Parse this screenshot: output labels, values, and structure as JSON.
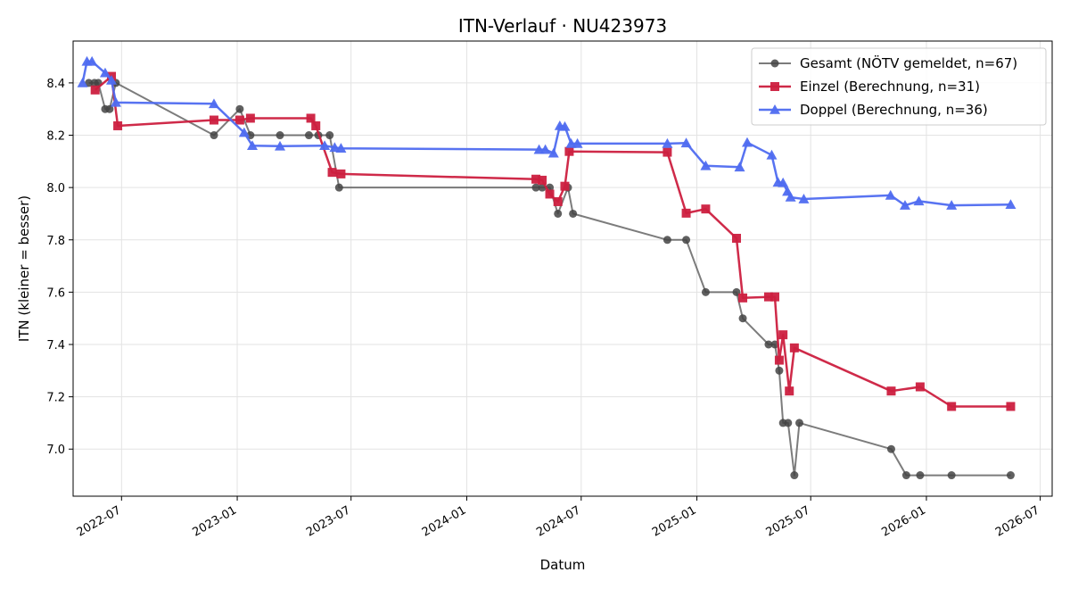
{
  "chart_data": {
    "type": "line",
    "title": "ITN-Verlauf · NU423973",
    "xlabel": "Datum",
    "ylabel": "ITN  (kleiner = besser)",
    "x_type": "date",
    "xlim": [
      "2022-04-15",
      "2026-07-20"
    ],
    "ylim": [
      6.82,
      8.56
    ],
    "x_ticks": [
      "2022-07-01",
      "2023-01-01",
      "2023-07-01",
      "2024-01-01",
      "2024-07-01",
      "2025-01-01",
      "2025-07-01",
      "2026-01-01",
      "2026-07-01"
    ],
    "x_tick_labels": [
      "2022-07",
      "2023-01",
      "2023-07",
      "2024-01",
      "2024-07",
      "2025-01",
      "2025-07",
      "2026-01",
      "2026-07"
    ],
    "y_ticks": [
      7.0,
      7.2,
      7.4,
      7.6,
      7.8,
      8.0,
      8.2,
      8.4
    ],
    "y_tick_labels": [
      "7.0",
      "7.2",
      "7.4",
      "7.6",
      "7.8",
      "8.0",
      "8.2",
      "8.4"
    ],
    "grid": true,
    "legend_position": "top-right",
    "series": [
      {
        "name": "Gesamt (NÖTV gemeldet, n=67)",
        "color": "#444444",
        "marker": "circle",
        "points": [
          [
            "2022-05-10",
            8.4
          ],
          [
            "2022-05-19",
            8.4
          ],
          [
            "2022-05-25",
            8.4
          ],
          [
            "2022-06-05",
            8.3
          ],
          [
            "2022-06-12",
            8.3
          ],
          [
            "2022-06-22",
            8.4
          ],
          [
            "2022-11-25",
            8.2
          ],
          [
            "2023-01-05",
            8.3
          ],
          [
            "2023-01-22",
            8.2
          ],
          [
            "2023-03-10",
            8.2
          ],
          [
            "2023-04-25",
            8.2
          ],
          [
            "2023-05-10",
            8.2
          ],
          [
            "2023-05-28",
            8.2
          ],
          [
            "2023-06-12",
            8.0
          ],
          [
            "2024-04-20",
            8.0
          ],
          [
            "2024-04-30",
            8.0
          ],
          [
            "2024-05-12",
            8.0
          ],
          [
            "2024-05-25",
            7.9
          ],
          [
            "2024-06-10",
            8.0
          ],
          [
            "2024-06-18",
            7.9
          ],
          [
            "2024-11-15",
            7.8
          ],
          [
            "2024-12-15",
            7.8
          ],
          [
            "2025-01-15",
            7.6
          ],
          [
            "2025-03-05",
            7.6
          ],
          [
            "2025-03-15",
            7.5
          ],
          [
            "2025-04-25",
            7.4
          ],
          [
            "2025-05-05",
            7.4
          ],
          [
            "2025-05-12",
            7.3
          ],
          [
            "2025-05-18",
            7.1
          ],
          [
            "2025-05-26",
            7.1
          ],
          [
            "2025-06-05",
            6.9
          ],
          [
            "2025-06-13",
            7.1
          ],
          [
            "2025-11-06",
            7.0
          ],
          [
            "2025-11-30",
            6.9
          ],
          [
            "2025-12-22",
            6.9
          ],
          [
            "2026-02-10",
            6.9
          ],
          [
            "2026-05-15",
            6.9
          ]
        ]
      },
      {
        "name": "Einzel (Berechnung, n=31)",
        "color": "#cc1f3f",
        "marker": "square",
        "points": [
          [
            "2022-05-20",
            8.373
          ],
          [
            "2022-06-15",
            8.425
          ],
          [
            "2022-06-25",
            8.236
          ],
          [
            "2022-11-25",
            8.258
          ],
          [
            "2023-01-05",
            8.258
          ],
          [
            "2023-01-22",
            8.265
          ],
          [
            "2023-04-28",
            8.265
          ],
          [
            "2023-05-06",
            8.236
          ],
          [
            "2023-06-01",
            8.058
          ],
          [
            "2023-06-15",
            8.052
          ],
          [
            "2024-04-20",
            8.032
          ],
          [
            "2024-04-30",
            8.028
          ],
          [
            "2024-05-12",
            7.975
          ],
          [
            "2024-05-25",
            7.946
          ],
          [
            "2024-06-05",
            8.005
          ],
          [
            "2024-06-12",
            8.138
          ],
          [
            "2024-11-15",
            8.135
          ],
          [
            "2024-12-15",
            7.902
          ],
          [
            "2025-01-15",
            7.918
          ],
          [
            "2025-03-05",
            7.806
          ],
          [
            "2025-03-15",
            7.578
          ],
          [
            "2025-04-25",
            7.582
          ],
          [
            "2025-05-05",
            7.582
          ],
          [
            "2025-05-12",
            7.34
          ],
          [
            "2025-05-18",
            7.437
          ],
          [
            "2025-05-28",
            7.222
          ],
          [
            "2025-06-05",
            7.387
          ],
          [
            "2025-11-06",
            7.222
          ],
          [
            "2025-12-22",
            7.238
          ],
          [
            "2026-02-10",
            7.163
          ],
          [
            "2026-05-15",
            7.163
          ]
        ]
      },
      {
        "name": "Doppel (Berechnung, n=36)",
        "color": "#4f6cf0",
        "marker": "triangle",
        "points": [
          [
            "2022-04-30",
            8.4
          ],
          [
            "2022-05-07",
            8.482
          ],
          [
            "2022-05-15",
            8.482
          ],
          [
            "2022-06-05",
            8.438
          ],
          [
            "2022-06-15",
            8.41
          ],
          [
            "2022-06-22",
            8.325
          ],
          [
            "2022-11-25",
            8.32
          ],
          [
            "2023-01-12",
            8.21
          ],
          [
            "2023-01-25",
            8.16
          ],
          [
            "2023-03-10",
            8.158
          ],
          [
            "2023-05-20",
            8.16
          ],
          [
            "2023-06-05",
            8.153
          ],
          [
            "2023-06-15",
            8.15
          ],
          [
            "2024-04-25",
            8.145
          ],
          [
            "2024-05-05",
            8.145
          ],
          [
            "2024-05-18",
            8.131
          ],
          [
            "2024-05-28",
            8.236
          ],
          [
            "2024-06-05",
            8.233
          ],
          [
            "2024-06-15",
            8.168
          ],
          [
            "2024-06-25",
            8.168
          ],
          [
            "2024-11-15",
            8.168
          ],
          [
            "2024-12-15",
            8.17
          ],
          [
            "2025-01-15",
            8.083
          ],
          [
            "2025-03-10",
            8.078
          ],
          [
            "2025-03-22",
            8.172
          ],
          [
            "2025-04-30",
            8.124
          ],
          [
            "2025-05-10",
            8.02
          ],
          [
            "2025-05-18",
            8.018
          ],
          [
            "2025-05-25",
            7.985
          ],
          [
            "2025-05-30",
            7.963
          ],
          [
            "2025-06-20",
            7.956
          ],
          [
            "2025-11-05",
            7.97
          ],
          [
            "2025-11-28",
            7.932
          ],
          [
            "2025-12-20",
            7.948
          ],
          [
            "2026-02-10",
            7.932
          ],
          [
            "2026-05-15",
            7.935
          ]
        ]
      }
    ]
  }
}
